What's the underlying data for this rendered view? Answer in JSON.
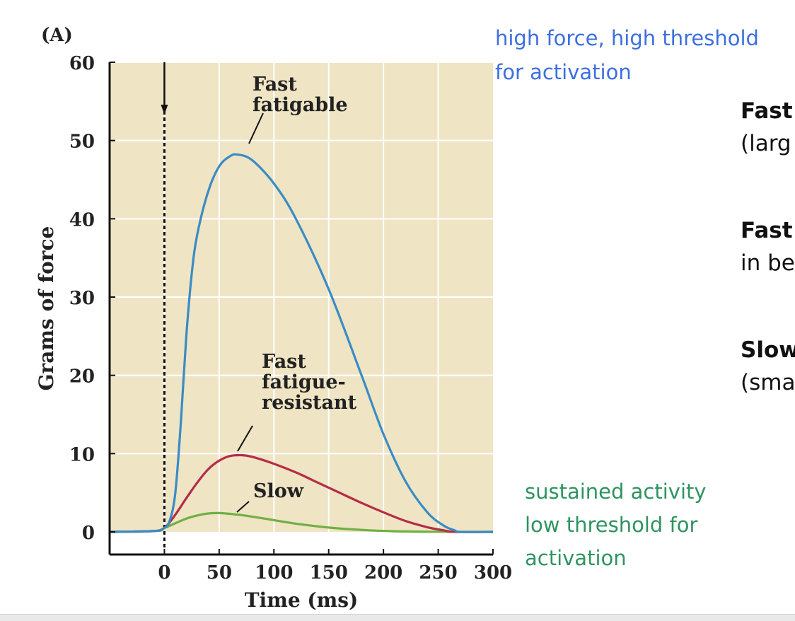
{
  "chart_data": {
    "type": "line",
    "panel_label": "(A)",
    "xlabel": "Time (ms)",
    "ylabel": "Grams of force",
    "xlim": [
      -50,
      300
    ],
    "ylim": [
      0,
      60
    ],
    "xticks": [
      0,
      50,
      100,
      150,
      200,
      250,
      300
    ],
    "yticks": [
      0,
      10,
      20,
      30,
      40,
      50,
      60
    ],
    "grid": true,
    "stimulus_time": 0,
    "series": [
      {
        "name": "Fast fatigable",
        "label_lines": [
          "Fast",
          "fatigable"
        ],
        "color": "#3a8cc4",
        "x": [
          -50,
          -10,
          0,
          5,
          10,
          15,
          20,
          25,
          30,
          40,
          50,
          60,
          67,
          80,
          100,
          120,
          150,
          180,
          200,
          220,
          240,
          255,
          265,
          270,
          300
        ],
        "y": [
          0,
          0.1,
          0.5,
          1.5,
          5,
          14,
          25,
          33,
          38,
          43.5,
          46.7,
          48,
          48.2,
          47.5,
          44.5,
          40,
          31,
          20,
          12.5,
          6.5,
          2.5,
          0.8,
          0.2,
          0,
          0
        ]
      },
      {
        "name": "Fast fatigue-resistant",
        "label_lines": [
          "Fast",
          "fatigue-",
          "resistant"
        ],
        "color": "#b52c46",
        "x": [
          -50,
          -10,
          0,
          10,
          20,
          30,
          40,
          50,
          60,
          70,
          80,
          100,
          120,
          140,
          160,
          180,
          200,
          220,
          240,
          255,
          265,
          300
        ],
        "y": [
          0,
          0.1,
          0.5,
          2.2,
          4.3,
          6.3,
          8,
          9.1,
          9.7,
          9.8,
          9.6,
          8.7,
          7.6,
          6.3,
          5,
          3.7,
          2.5,
          1.4,
          0.6,
          0.2,
          0,
          0
        ]
      },
      {
        "name": "Slow",
        "label_lines": [
          "Slow"
        ],
        "color": "#6fb043",
        "x": [
          -50,
          -10,
          0,
          10,
          20,
          30,
          40,
          50,
          60,
          70,
          80,
          100,
          120,
          150,
          180,
          210,
          240,
          300
        ],
        "y": [
          0,
          0.1,
          0.5,
          1.1,
          1.7,
          2.1,
          2.35,
          2.4,
          2.3,
          2.15,
          1.95,
          1.5,
          1.05,
          0.55,
          0.25,
          0.08,
          0.02,
          0
        ]
      }
    ]
  },
  "notes": {
    "high_force_line1": "high force, high threshold",
    "high_force_line2": "for activation",
    "sustained_line1": "sustained activity",
    "sustained_line2": "low threshold for",
    "sustained_line3": "activation",
    "high_force_color": "#3c6fe0",
    "sustained_color": "#2f9460"
  },
  "side_text": {
    "row1_bold": "Fast",
    "row1_rest": "(larg",
    "row2_bold": "Fast",
    "row2_rest": "in be",
    "row3_bold": "Slow",
    "row3_rest": "(sma"
  }
}
